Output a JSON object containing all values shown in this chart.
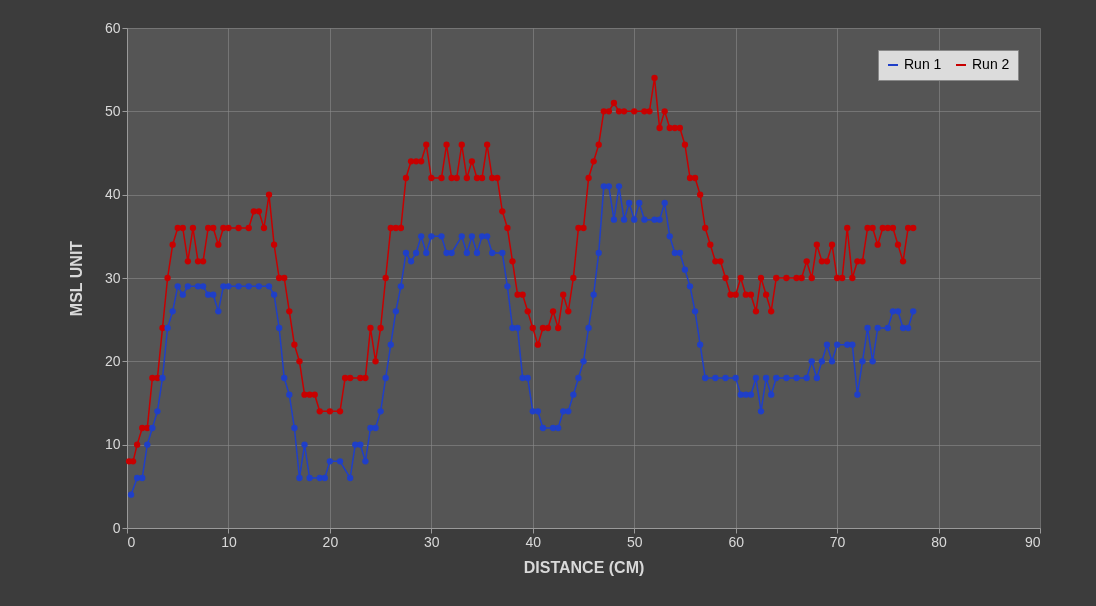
{
  "chart_data": {
    "type": "line",
    "xlabel": "DISTANCE (CM)",
    "ylabel": "MSL UNIT",
    "xlim": [
      0,
      90
    ],
    "xticks": [
      0,
      10,
      20,
      30,
      40,
      50,
      60,
      70,
      80,
      90
    ],
    "ylim": [
      0,
      60
    ],
    "yticks": [
      0,
      10,
      20,
      30,
      40,
      50,
      60
    ],
    "grid": true,
    "legend": "top right",
    "marker": "circle",
    "line_style": "solid",
    "series": [
      {
        "name": "Run 1",
        "color": "#1f3fc8",
        "x": [
          0.4,
          1,
          1.5,
          2,
          2.5,
          3,
          3.5,
          4,
          4.5,
          5,
          5.5,
          6,
          7,
          7.5,
          8,
          8.5,
          9,
          9.5,
          10,
          11,
          12,
          13,
          14,
          14.5,
          15,
          15.5,
          16,
          16.5,
          17,
          17.5,
          18,
          19,
          19.5,
          20,
          21,
          22,
          22.5,
          23,
          23.5,
          24,
          24.5,
          25,
          25.5,
          26,
          26.5,
          27,
          27.5,
          28,
          28.5,
          29,
          29.5,
          30,
          31,
          31.5,
          32,
          33,
          33.5,
          34,
          34.5,
          35,
          35.5,
          36,
          37,
          37.5,
          38,
          38.5,
          39,
          39.5,
          40,
          40.5,
          41,
          42,
          42.5,
          43,
          43.5,
          44,
          44.5,
          45,
          45.5,
          46,
          46.5,
          47,
          47.5,
          48,
          48.5,
          49,
          49.5,
          50,
          50.5,
          51,
          52,
          52.5,
          53,
          53.5,
          54,
          54.5,
          55,
          55.5,
          56,
          56.5,
          57,
          58,
          59,
          60,
          60.5,
          61,
          61.5,
          62,
          62.5,
          63,
          63.5,
          64,
          65,
          66,
          67,
          67.5,
          68,
          68.5,
          69,
          69.5,
          70,
          71,
          71.5,
          72,
          72.5,
          73,
          73.5,
          74,
          75,
          75.5,
          76,
          76.5,
          77,
          77.5
        ],
        "values": [
          4,
          6,
          6,
          10,
          12,
          14,
          18,
          24,
          26,
          29,
          28,
          29,
          29,
          29,
          28,
          28,
          26,
          29,
          29,
          29,
          29,
          29,
          29,
          28,
          24,
          18,
          16,
          12,
          6,
          10,
          6,
          6,
          6,
          8,
          8,
          6,
          10,
          10,
          8,
          12,
          12,
          14,
          18,
          22,
          26,
          29,
          33,
          32,
          33,
          35,
          33,
          35,
          35,
          33,
          33,
          35,
          33,
          35,
          33,
          35,
          35,
          33,
          33,
          29,
          24,
          24,
          18,
          18,
          14,
          14,
          12,
          12,
          12,
          14,
          14,
          16,
          18,
          20,
          24,
          28,
          33,
          41,
          41,
          37,
          41,
          37,
          39,
          37,
          39,
          37,
          37,
          37,
          39,
          35,
          33,
          33,
          31,
          29,
          26,
          22,
          18,
          18,
          18,
          18,
          16,
          16,
          16,
          18,
          14,
          18,
          16,
          18,
          18,
          18,
          18,
          20,
          18,
          20,
          22,
          20,
          22,
          22,
          22,
          16,
          20,
          24,
          20,
          24,
          24,
          26,
          26,
          24,
          24,
          26
        ]
      },
      {
        "name": "Run 2",
        "color": "#c80000",
        "x": [
          0.2,
          0.6,
          1,
          1.5,
          2,
          2.5,
          3,
          3.5,
          4,
          4.5,
          5,
          5.5,
          6,
          6.5,
          7,
          7.5,
          8,
          8.5,
          9,
          9.5,
          10,
          11,
          12,
          12.5,
          13,
          13.5,
          14,
          14.5,
          15,
          15.5,
          16,
          16.5,
          17,
          17.5,
          18,
          18.5,
          19,
          20,
          21,
          21.5,
          22,
          23,
          23.5,
          24,
          24.5,
          25,
          25.5,
          26,
          26.5,
          27,
          27.5,
          28,
          28.5,
          29,
          29.5,
          30,
          31,
          31.5,
          32,
          32.5,
          33,
          33.5,
          34,
          34.5,
          35,
          35.5,
          36,
          36.5,
          37,
          37.5,
          38,
          38.5,
          39,
          39.5,
          40,
          40.5,
          41,
          41.5,
          42,
          42.5,
          43,
          43.5,
          44,
          44.5,
          45,
          45.5,
          46,
          46.5,
          47,
          47.5,
          48,
          48.5,
          49,
          50,
          51,
          51.5,
          52,
          52.5,
          53,
          53.5,
          54,
          54.5,
          55,
          55.5,
          56,
          56.5,
          57,
          57.5,
          58,
          58.5,
          59,
          59.5,
          60,
          60.5,
          61,
          61.5,
          62,
          62.5,
          63,
          63.5,
          64,
          65,
          66,
          66.5,
          67,
          67.5,
          68,
          68.5,
          69,
          69.5,
          70,
          70.5,
          71,
          71.5,
          72,
          72.5,
          73,
          73.5,
          74,
          74.5,
          75,
          75.5,
          76,
          76.5,
          77,
          77.5
        ],
        "values": [
          8,
          8,
          10,
          12,
          12,
          18,
          18,
          24,
          30,
          34,
          36,
          36,
          32,
          36,
          32,
          32,
          36,
          36,
          34,
          36,
          36,
          36,
          36,
          38,
          38,
          36,
          40,
          34,
          30,
          30,
          26,
          22,
          20,
          16,
          16,
          16,
          14,
          14,
          14,
          18,
          18,
          18,
          18,
          24,
          20,
          24,
          30,
          36,
          36,
          36,
          42,
          44,
          44,
          44,
          46,
          42,
          42,
          46,
          42,
          42,
          46,
          42,
          44,
          42,
          42,
          46,
          42,
          42,
          38,
          36,
          32,
          28,
          28,
          26,
          24,
          22,
          24,
          24,
          26,
          24,
          28,
          26,
          30,
          36,
          36,
          42,
          44,
          46,
          50,
          50,
          51,
          50,
          50,
          50,
          50,
          50,
          54,
          48,
          50,
          48,
          48,
          48,
          46,
          42,
          42,
          40,
          36,
          34,
          32,
          32,
          30,
          28,
          28,
          30,
          28,
          28,
          26,
          30,
          28,
          26,
          30,
          30,
          30,
          30,
          32,
          30,
          34,
          32,
          32,
          34,
          30,
          30,
          36,
          30,
          32,
          32,
          36,
          36,
          34,
          36,
          36,
          36,
          34,
          32,
          36,
          36
        ]
      }
    ]
  }
}
